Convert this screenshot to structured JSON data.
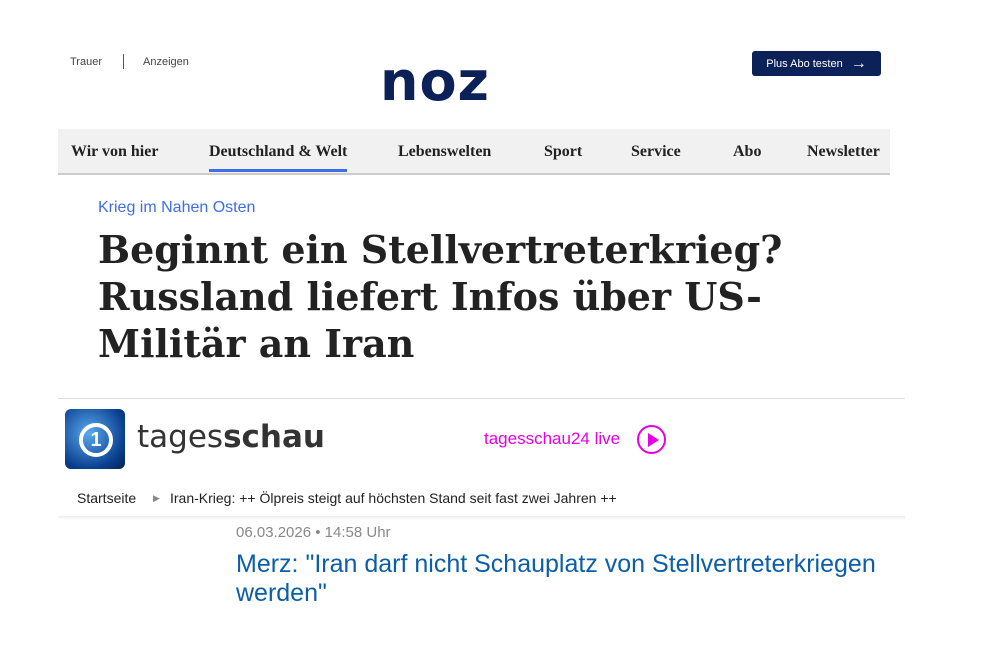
{
  "noz": {
    "top_links": [
      "Trauer",
      "Anzeigen"
    ],
    "logo": "noz",
    "plus_button": "Plus Abo testen",
    "plus_arrow": "→",
    "nav": [
      "Wir von hier",
      "Deutschland & Welt",
      "Lebenswelten",
      "Sport",
      "Service",
      "Abo",
      "Newsletter"
    ],
    "active_nav": "Deutschland & Welt",
    "kicker": "Krieg im Nahen Osten",
    "headline": "Beginnt ein Stellvertreterkrieg? Russland liefert Infos über US-Militär an Iran"
  },
  "tagesschau": {
    "logo_mark": "1",
    "title_light": "tages",
    "title_bold": "schau",
    "live_link": "tagesschau24 live",
    "breadcrumb": [
      "Startseite",
      "Iran-Krieg: ++ Ölpreis steigt auf höchsten Stand seit fast zwei Jahren ++"
    ],
    "date": "06.03.2026 • 14:58 Uhr",
    "headline": "Merz: \"Iran darf nicht Schauplatz von Stellvertreterkriegen werden\""
  },
  "colors": {
    "noz_navy": "#0b2158",
    "noz_accent": "#3d6ee8",
    "ts_live": "#e600e6",
    "ts_link": "#0b5ea8"
  }
}
